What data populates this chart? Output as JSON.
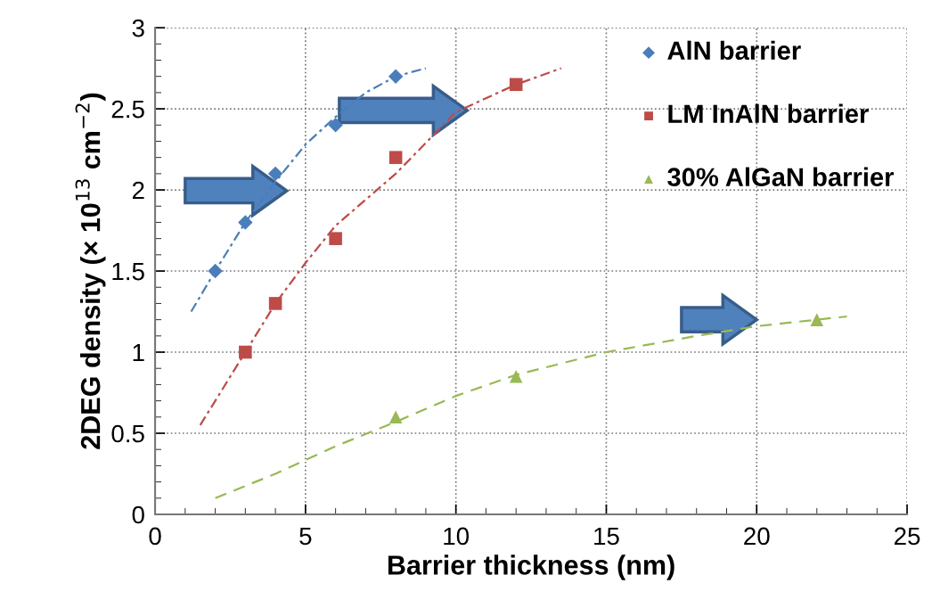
{
  "chart_data": {
    "type": "scatter",
    "xlabel": "Barrier thickness (nm)",
    "ylabel": "2DEG density (× 10$^{13}$ cm$^{−2}$)",
    "xlim": [
      0,
      25
    ],
    "xticks": [
      0,
      5,
      10,
      15,
      20,
      25
    ],
    "ylim": [
      0,
      3
    ],
    "yticks": [
      0,
      0.5,
      1,
      1.5,
      2,
      2.5,
      3
    ],
    "grid": true,
    "legend": "top right",
    "series": [
      {
        "name": "AlN barrier",
        "marker": "diamond",
        "color": "#4a7ebb",
        "x": [
          2,
          3,
          4,
          6,
          8
        ],
        "values": [
          1.5,
          1.8,
          2.1,
          2.4,
          2.7
        ]
      },
      {
        "name": "LM InAlN barrier",
        "marker": "square",
        "color": "#be4b48",
        "x": [
          3,
          4,
          6,
          8,
          12
        ],
        "values": [
          1.0,
          1.3,
          1.7,
          2.2,
          2.65
        ]
      },
      {
        "name": "30% AlGaN barrier",
        "marker": "triangle",
        "color": "#98b954",
        "x": [
          8,
          12,
          22
        ],
        "values": [
          0.6,
          0.85,
          1.2
        ]
      },
      {
        "type": "line",
        "line_style": "dashdot",
        "color": "#4a7ebb",
        "x": [
          1.2,
          2,
          3,
          4,
          5,
          6,
          7,
          8,
          9
        ],
        "values": [
          1.25,
          1.5,
          1.8,
          2.05,
          2.28,
          2.45,
          2.6,
          2.7,
          2.75
        ]
      },
      {
        "type": "line",
        "line_style": "dashdot",
        "color": "#be4b48",
        "x": [
          1.5,
          3,
          4,
          5,
          6,
          8,
          10,
          12,
          13.5
        ],
        "values": [
          0.55,
          1.0,
          1.3,
          1.55,
          1.78,
          2.1,
          2.48,
          2.65,
          2.75
        ]
      },
      {
        "type": "line",
        "line_style": "dashed",
        "color": "#98b954",
        "x": [
          2,
          4,
          6,
          8,
          10,
          12,
          15,
          18,
          20,
          23
        ],
        "values": [
          0.1,
          0.25,
          0.42,
          0.57,
          0.73,
          0.86,
          1.0,
          1.1,
          1.16,
          1.22
        ]
      }
    ]
  }
}
